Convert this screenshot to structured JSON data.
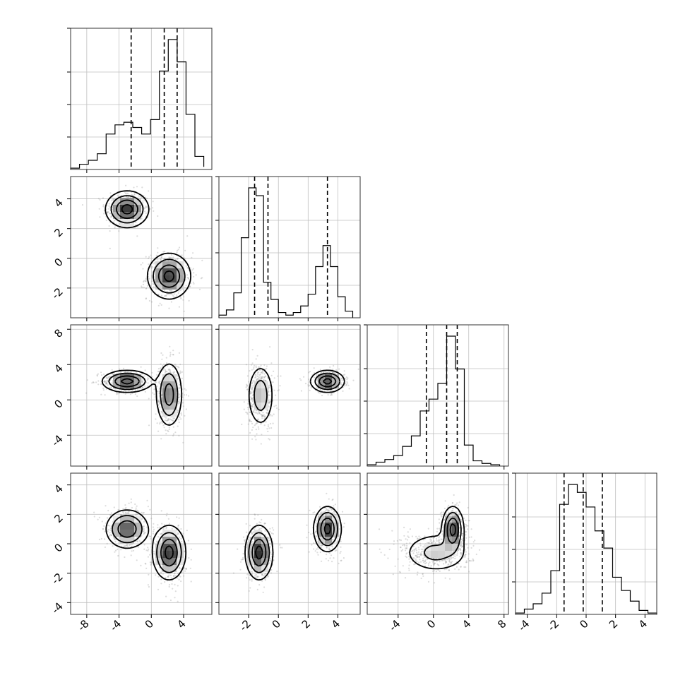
{
  "chart_data": {
    "type": "corner",
    "title": "",
    "dimensions": 4,
    "grid": true,
    "quantile_lines": "dashed",
    "axes": [
      {
        "range": [
          -10,
          7.5
        ],
        "ticks": [
          "-8",
          "-4",
          "0",
          "4"
        ],
        "tick_values": [
          -8,
          -4,
          0,
          4
        ]
      },
      {
        "range": [
          -4.0,
          5.5
        ],
        "ticks": [
          "-2",
          "0",
          "2",
          "4"
        ],
        "tick_values": [
          -2,
          0,
          2,
          4
        ]
      },
      {
        "range": [
          -7.5,
          8.5
        ],
        "ticks": [
          "-4",
          "0",
          "4",
          "8"
        ],
        "tick_values": [
          -4,
          0,
          4,
          8
        ]
      },
      {
        "range": [
          -4.8,
          4.8
        ],
        "ticks": [
          "-4",
          "-2",
          "0",
          "2",
          "4"
        ],
        "tick_values": [
          -4,
          -2,
          0,
          2,
          4
        ]
      }
    ],
    "diagonal": [
      {
        "bins": [
          -10,
          -8.9,
          -7.8,
          -6.7,
          -5.6,
          -4.5,
          -3.4,
          -2.3,
          -1.2,
          -0.1,
          1.0,
          2.1,
          3.2,
          4.3,
          5.4,
          6.5
        ],
        "counts": [
          0.01,
          0.04,
          0.07,
          0.12,
          0.27,
          0.34,
          0.36,
          0.32,
          0.27,
          0.38,
          0.75,
          0.99,
          0.82,
          0.42,
          0.1,
          0.02
        ],
        "quantiles": [
          -2.5,
          1.6,
          3.2
        ]
      },
      {
        "bins": [
          -4.0,
          -3.5,
          -3.0,
          -2.5,
          -2.0,
          -1.5,
          -1.0,
          -0.5,
          0.0,
          0.5,
          1.0,
          1.5,
          2.0,
          2.5,
          3.0,
          3.5,
          4.0,
          4.5,
          5.0
        ],
        "counts": [
          0.02,
          0.06,
          0.19,
          0.61,
          0.99,
          0.93,
          0.27,
          0.14,
          0.04,
          0.02,
          0.04,
          0.09,
          0.18,
          0.39,
          0.55,
          0.39,
          0.16,
          0.05
        ],
        "quantiles": [
          -1.6,
          -0.7,
          3.3
        ]
      },
      {
        "bins": [
          -7.5,
          -6.5,
          -5.5,
          -4.5,
          -3.5,
          -2.5,
          -1.5,
          -0.5,
          0.5,
          1.5,
          2.5,
          3.5,
          4.5,
          5.5,
          6.5,
          7.5
        ],
        "counts": [
          0.01,
          0.03,
          0.05,
          0.08,
          0.15,
          0.23,
          0.42,
          0.51,
          0.63,
          0.99,
          0.74,
          0.16,
          0.04,
          0.02,
          0.01
        ],
        "quantiles": [
          -0.8,
          1.5,
          2.7
        ]
      },
      {
        "bins": [
          -4.8,
          -4.2,
          -3.6,
          -3.0,
          -2.4,
          -1.8,
          -1.2,
          -0.6,
          0.0,
          0.6,
          1.2,
          1.8,
          2.4,
          3.0,
          3.6,
          4.2,
          4.8
        ],
        "counts": [
          0.01,
          0.04,
          0.08,
          0.16,
          0.33,
          0.83,
          0.98,
          0.92,
          0.81,
          0.63,
          0.5,
          0.28,
          0.18,
          0.1,
          0.03,
          0.01
        ],
        "quantiles": [
          -1.5,
          -0.2,
          1.1
        ]
      }
    ],
    "pairs": [
      {
        "x_dim": 0,
        "y_dim": 1,
        "clusters": [
          {
            "mean": [
              -3,
              3.3
            ],
            "sd": [
              1.3,
              0.6
            ],
            "weight": 0.45
          },
          {
            "mean": [
              2.2,
              -1.2
            ],
            "sd": [
              1.3,
              0.75
            ],
            "weight": 0.55
          }
        ]
      },
      {
        "x_dim": 0,
        "y_dim": 2,
        "clusters": [
          {
            "mean": [
              -3,
              2.1
            ],
            "sd": [
              1.5,
              0.6
            ],
            "weight": 0.45
          },
          {
            "mean": [
              2.2,
              0.6
            ],
            "sd": [
              0.8,
              1.8
            ],
            "weight": 0.55
          }
        ]
      },
      {
        "x_dim": 1,
        "y_dim": 2,
        "clusters": [
          {
            "mean": [
              -1.2,
              0.5
            ],
            "sd": [
              0.45,
              1.8
            ],
            "weight": 0.55
          },
          {
            "mean": [
              3.3,
              2.1
            ],
            "sd": [
              0.55,
              0.6
            ],
            "weight": 0.45
          }
        ]
      },
      {
        "x_dim": 0,
        "y_dim": 3,
        "clusters": [
          {
            "mean": [
              -3,
              1
            ],
            "sd": [
              1.3,
              0.65
            ],
            "weight": 0.45
          },
          {
            "mean": [
              2.2,
              -0.6
            ],
            "sd": [
              1.0,
              0.9
            ],
            "weight": 0.55
          }
        ]
      },
      {
        "x_dim": 1,
        "y_dim": 3,
        "clusters": [
          {
            "mean": [
              -1.3,
              -0.6
            ],
            "sd": [
              0.45,
              0.9
            ],
            "weight": 0.55
          },
          {
            "mean": [
              3.3,
              1.0
            ],
            "sd": [
              0.45,
              0.75
            ],
            "weight": 0.45
          }
        ]
      },
      {
        "x_dim": 2,
        "y_dim": 3,
        "clusters": [
          {
            "mean": [
              0.3,
              -0.6
            ],
            "sd": [
              1.9,
              0.7
            ],
            "weight": 0.55
          },
          {
            "mean": [
              2.2,
              1.0
            ],
            "sd": [
              0.6,
              0.75
            ],
            "weight": 0.45
          }
        ]
      }
    ]
  }
}
